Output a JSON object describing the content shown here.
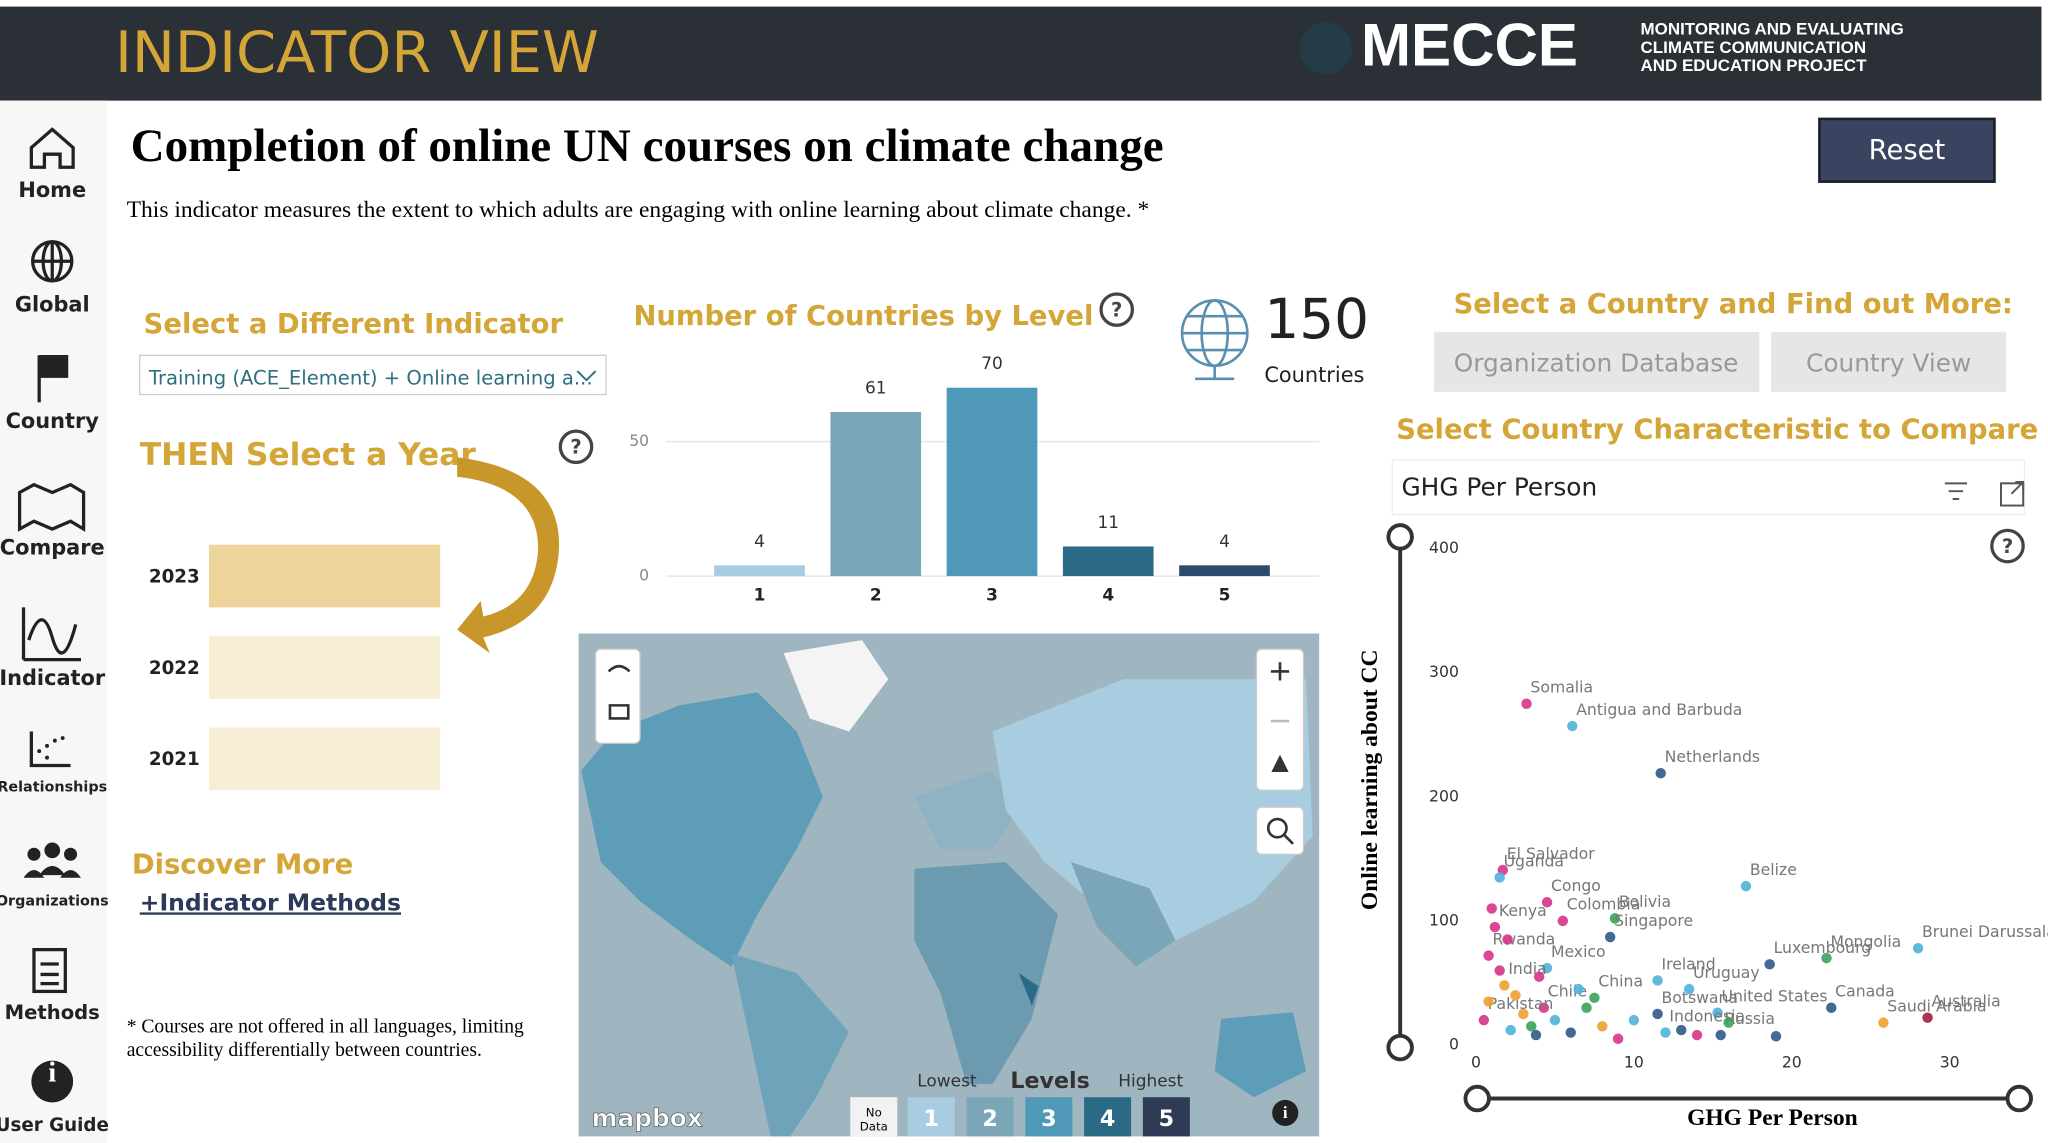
{
  "header": {
    "title": "INDICATOR VIEW",
    "logo": "MECCE",
    "logo_tagline": [
      "MONITORING AND EVALUATING",
      "CLIMATE COMMUNICATION",
      "AND EDUCATION PROJECT"
    ]
  },
  "nav": [
    "Home",
    "Global",
    "Country",
    "Compare",
    "Indicator",
    "Relationships",
    "Organizations",
    "Methods",
    "User Guide"
  ],
  "page": {
    "title": "Completion of online UN courses on climate change",
    "description": "This indicator measures the extent to which adults are engaging with online learning about climate change. *",
    "reset": "Reset",
    "footnote": [
      "* Courses are not offered in all languages, limiting",
      "accessibility differentially between countries."
    ]
  },
  "indicator_select": {
    "heading": "Select a Different Indicator",
    "value": "Training (ACE_Element) + Online learning a..."
  },
  "year_select": {
    "heading": "THEN Select a Year",
    "years": [
      "2023",
      "2022",
      "2021"
    ]
  },
  "discover": {
    "heading": "Discover More",
    "link": "+Indicator Methods"
  },
  "country_total": {
    "value": 150,
    "label": "Countries"
  },
  "country_select": {
    "heading": "Select a Country and Find out More:",
    "buttons": [
      "Organization Database",
      "Country View"
    ]
  },
  "compare": {
    "heading": "Select Country Characteristic to Compare",
    "dropdown": "GHG Per Person"
  },
  "map": {
    "brand": "mapbox",
    "legend_title": "Levels",
    "lowest": "Lowest",
    "highest": "Highest",
    "no_data": [
      "No",
      "Data"
    ],
    "levels": [
      "1",
      "2",
      "3",
      "4",
      "5"
    ],
    "level_colors": [
      "#a9cde0",
      "#7aa6b8",
      "#4f98b8",
      "#2b6a85",
      "#2e3b55"
    ]
  },
  "chart_data": [
    {
      "type": "bar",
      "title": "Number of Countries by Level",
      "categories": [
        "1",
        "2",
        "3",
        "4",
        "5"
      ],
      "values": [
        4,
        61,
        70,
        11,
        4
      ],
      "colors": [
        "#a9cde0",
        "#7aa6b8",
        "#4f98b8",
        "#2b6a85",
        "#2e4a6e"
      ],
      "ylim": [
        0,
        75
      ],
      "yticks": [
        0,
        50
      ],
      "grid": true
    },
    {
      "type": "scatter",
      "x_label": "GHG Per Person",
      "y_label": "Online learning about CC",
      "xlim": [
        -0.5,
        33
      ],
      "ylim": [
        -5,
        410
      ],
      "xticks": [
        0,
        10,
        20,
        30
      ],
      "yticks": [
        0,
        100,
        200,
        300,
        400
      ],
      "x": [
        3.2,
        6.1,
        11.7,
        1.7,
        1.5,
        4.5,
        5.5,
        8.8,
        17.1,
        8.5,
        1.2,
        0.8,
        18.6,
        22.2,
        28,
        4.5,
        11.5,
        1.8,
        13.5,
        22.5,
        7.5,
        4.3,
        15.3,
        28.6,
        25.8,
        11.5,
        0.5,
        12,
        15.5,
        19,
        1,
        2,
        2.5,
        3,
        3.5,
        4,
        5,
        6,
        7,
        8,
        9,
        10,
        13,
        14,
        16,
        0.8,
        1.5,
        2.2,
        3.8,
        6.5
      ],
      "y": [
        275,
        257,
        219,
        141,
        135,
        115,
        100,
        102,
        128,
        87,
        95,
        72,
        65,
        70,
        78,
        62,
        52,
        48,
        45,
        30,
        38,
        30,
        26,
        22,
        18,
        25,
        20,
        10,
        8,
        7,
        110,
        85,
        40,
        25,
        15,
        55,
        20,
        10,
        30,
        15,
        5,
        20,
        12,
        8,
        18,
        35,
        60,
        12,
        8,
        45
      ],
      "point_labels": [
        "Somalia",
        "Antigua and Barbuda",
        "Netherlands",
        "El Salvador",
        "Uganda",
        "Congo",
        "Colombia",
        "Bolivia",
        "Belize",
        "Singapore",
        "Kenya",
        "Rwanda",
        "Luxembourg",
        "Mongolia",
        "Brunei Darussalam",
        "Mexico",
        "Ireland",
        "India",
        "Uruguay",
        "Canada",
        "China",
        "Chile",
        "United States",
        "Australia",
        "Saudi Arabia",
        "Botswana",
        "Pakistan",
        "Indonesia",
        "Russia",
        null,
        null,
        null,
        null,
        null,
        null,
        null,
        null,
        null,
        null,
        null,
        null,
        null,
        null,
        null,
        null,
        null,
        null,
        null,
        null,
        null
      ],
      "colors": [
        "#d6338a",
        "#4fb3d9",
        "#2e5a8a",
        "#d6338a",
        "#4fb3d9",
        "#d6338a",
        "#d6338a",
        "#3aa35a",
        "#4fb3d9",
        "#2e5a8a",
        "#d6338a",
        "#d6338a",
        "#2e5a8a",
        "#3aa35a",
        "#4fb3d9",
        "#4fb3d9",
        "#4fb3d9",
        "#f0a030",
        "#4fb3d9",
        "#2e5a8a",
        "#3aa35a",
        "#d6338a",
        "#4fb3d9",
        "#a02040",
        "#f0a030",
        "#2e5a8a",
        "#d6338a",
        "#4fb3d9",
        "#2e5a8a",
        "#2e5a8a",
        "#d6338a",
        "#d6338a",
        "#f0a030",
        "#f0a030",
        "#3aa35a",
        "#d6338a",
        "#4fb3d9",
        "#2e5a8a",
        "#3aa35a",
        "#f0a030",
        "#d6338a",
        "#4fb3d9",
        "#2e5a8a",
        "#d6338a",
        "#3aa35a",
        "#f0a030",
        "#d6338a",
        "#4fb3d9",
        "#2e5a8a",
        "#4fb3d9"
      ]
    }
  ]
}
